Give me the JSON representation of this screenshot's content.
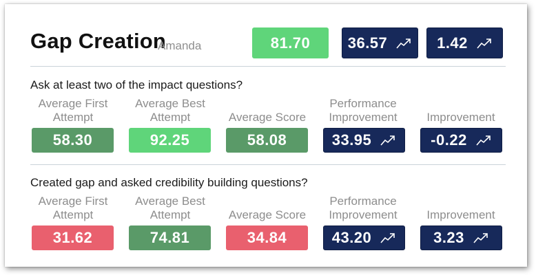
{
  "header": {
    "title": "Gap Creation",
    "subtitle": "Amanda",
    "score": "81.70",
    "performance_improvement": "36.57",
    "improvement": "1.42"
  },
  "sections": [
    {
      "question": "Ask at least two of the impact questions?",
      "labels": {
        "avg_first": "Average First Attempt",
        "avg_best": "Average Best Attempt",
        "avg_score": "Average Score",
        "perf_improvement": "Performance Improvement",
        "improvement": "Improvement"
      },
      "values": {
        "avg_first": "58.30",
        "avg_best": "92.25",
        "avg_score": "58.08",
        "perf_improvement": "33.95",
        "improvement": "-0.22"
      }
    },
    {
      "question": "Created gap and asked credibility building questions?",
      "labels": {
        "avg_first": "Average First Attempt",
        "avg_best": "Average Best Attempt",
        "avg_score": "Average Score",
        "perf_improvement": "Performance Improvement",
        "improvement": "Improvement"
      },
      "values": {
        "avg_first": "31.62",
        "avg_best": "74.81",
        "avg_score": "34.84",
        "perf_improvement": "43.20",
        "improvement": "3.23"
      }
    }
  ],
  "colors": {
    "green_light": "#5fd57a",
    "green_dark": "#5a9a68",
    "red": "#e9606e",
    "navy": "#17295a"
  },
  "icons": {
    "trend": "trend-up-icon"
  }
}
